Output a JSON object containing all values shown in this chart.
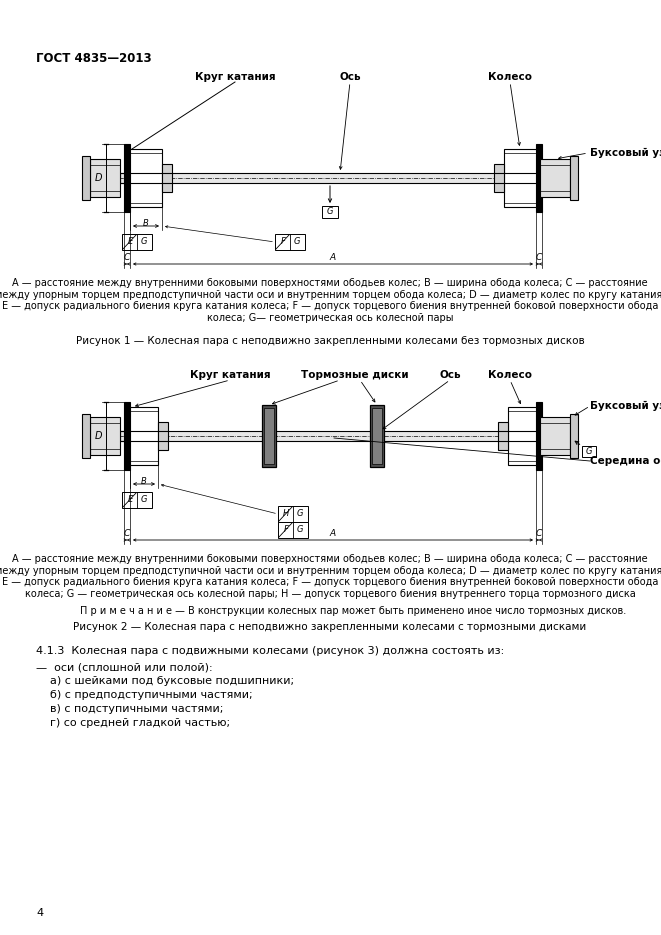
{
  "page_width": 6.61,
  "page_height": 9.35,
  "dpi": 100,
  "background_color": "#ffffff",
  "header_text": "ГОСТ 4835—2013",
  "header_fontsize": 8.5,
  "figure1_labels_top": [
    "Круг катания",
    "Ось",
    "Колесо"
  ],
  "figure1_label_right": "Буксовый узел",
  "figure1_caption": "A — расстояние между внутренними боковыми поверхностями ободьев колес; B — ширина обода колеса; C — расстояние\nмежду упорным торцем предподступичной части оси и внутренним торцем обода колеса; D — диаметр колес по кругу катания;\nE — допуск радиального биения круга катания колеса; F — допуск торцевого биения внутренней боковой поверхности обода\nколеса; G— геометрическая ось колесной пары",
  "figure1_title": "Рисунок 1 — Колесная пара с неподвижно закрепленными колесами без тормозных дисков",
  "figure2_labels_top": [
    "Круг катания",
    "Тормозные диски",
    "Ось",
    "Колесо"
  ],
  "figure2_label_right": "Буксовый узел",
  "figure2_label_mid_right": "Середина оси",
  "figure2_caption": "A — расстояние между внутренними боковыми поверхностями ободьев колес; B — ширина обода колеса; C — расстояние\nмежду упорным торцем предподступичной части оси и внутренним торцем обода колеса; D — диаметр колес по кругу катания;\nE — допуск радиального биения круга катания колеса; F — допуск торцевого биения внутренней боковой поверхности обода\nколеса; G — геометрическая ось колесной пары; H — допуск торцевого биения внутреннего торца тормозного диска",
  "figure2_note": "П р и м е ч а н и е — В конструкции колесных пар может быть применено иное число тормозных дисков.",
  "figure2_title": "Рисунок 2 — Колесная пара с неподвижно закрепленными колесами с тормозными дисками",
  "section_header": "4.1.3  Колесная пара с подвижными колесами (рисунок 3) должна состоять из:",
  "section_lines": [
    "—  оси (сплошной или полой):",
    "    а) с шейками под буксовые подшипники;",
    "    б) с предподступичными частями;",
    "    в) с подступичными частями;",
    "    г) со средней гладкой частью;"
  ],
  "page_number": "4",
  "fs_small": 7,
  "fs_label": 7.5,
  "fs_caption": 7,
  "fs_title": 7.5,
  "fs_section": 8,
  "fs_header": 8.5
}
